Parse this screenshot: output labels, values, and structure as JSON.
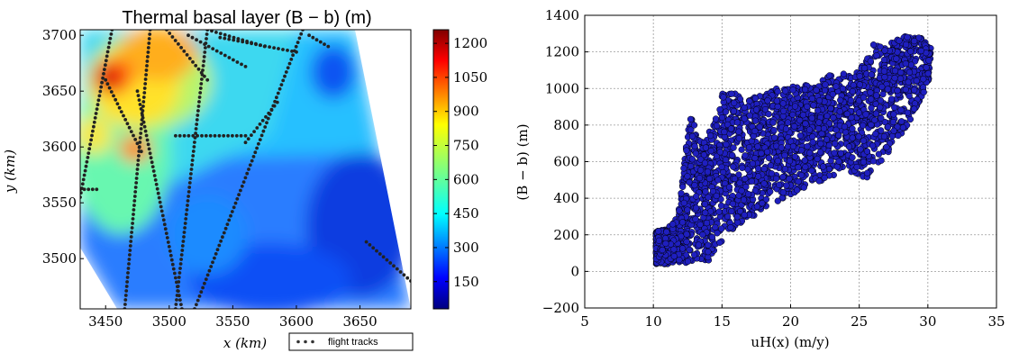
{
  "chart_data": [
    {
      "type": "heatmap",
      "title": "Thermal basal layer (B − b) (m)",
      "xlabel": "x (km)",
      "ylabel": "y (km)",
      "xlim": [
        3430,
        3690
      ],
      "ylim": [
        3455,
        3705
      ],
      "x_ticks": [
        "3450",
        "3500",
        "3550",
        "3600",
        "3650"
      ],
      "y_ticks": [
        "3500",
        "3550",
        "3600",
        "3650",
        "3700"
      ],
      "colorbar": {
        "min": 30,
        "max": 1260,
        "ticks": [
          "150",
          "300",
          "450",
          "600",
          "750",
          "900",
          "1050",
          "1200"
        ],
        "colormap": "jet"
      },
      "legend": {
        "label": "flight tracks",
        "placement": "bottom-right-outside"
      },
      "flight_tracks": [
        [
          [
            3455,
            3705
          ],
          [
            3430,
            3555
          ]
        ],
        [
          [
            3485,
            3705
          ],
          [
            3465,
            3455
          ]
        ],
        [
          [
            3530,
            3705
          ],
          [
            3505,
            3455
          ]
        ],
        [
          [
            3605,
            3705
          ],
          [
            3520,
            3455
          ]
        ],
        [
          [
            3498,
            3705
          ],
          [
            3530,
            3660
          ]
        ],
        [
          [
            3515,
            3700
          ],
          [
            3560,
            3672
          ]
        ],
        [
          [
            3530,
            3705
          ],
          [
            3575,
            3690
          ]
        ],
        [
          [
            3540,
            3698
          ],
          [
            3600,
            3685
          ]
        ],
        [
          [
            3610,
            3700
          ],
          [
            3625,
            3690
          ]
        ],
        [
          [
            3585,
            3640
          ],
          [
            3560,
            3604
          ]
        ],
        [
          [
            3475,
            3650
          ],
          [
            3510,
            3455
          ]
        ],
        [
          [
            3450,
            3660
          ],
          [
            3478,
            3596
          ]
        ],
        [
          [
            3505,
            3610
          ],
          [
            3560,
            3610
          ]
        ],
        [
          [
            3430,
            3562
          ],
          [
            3443,
            3562
          ]
        ],
        [
          [
            3655,
            3515
          ],
          [
            3690,
            3480
          ]
        ]
      ]
    },
    {
      "type": "scatter",
      "title": "",
      "xlabel": "uH(x) (m/y)",
      "ylabel": "(B − b) (m)",
      "xlim": [
        5,
        35
      ],
      "ylim": [
        -200,
        1400
      ],
      "x_ticks": [
        "5",
        "10",
        "15",
        "20",
        "25",
        "30",
        "35"
      ],
      "y_ticks": [
        "−200",
        "0",
        "200",
        "400",
        "600",
        "800",
        "1000",
        "1200",
        "1400"
      ],
      "grid": true,
      "marker_color": "#1f1fbf",
      "edge_color": "#000000",
      "point_cloud": {
        "lower_envelope": [
          [
            10.2,
            40
          ],
          [
            12,
            40
          ],
          [
            13.5,
            40
          ],
          [
            14.5,
            80
          ],
          [
            15.5,
            200
          ],
          [
            17,
            290
          ],
          [
            19,
            380
          ],
          [
            21,
            460
          ],
          [
            22.5,
            500
          ],
          [
            24,
            560
          ],
          [
            25.5,
            500
          ],
          [
            27,
            640
          ],
          [
            28.5,
            800
          ],
          [
            30,
            1000
          ],
          [
            30.3,
            1220
          ]
        ],
        "upper_envelope": [
          [
            10.2,
            220
          ],
          [
            11,
            230
          ],
          [
            11.8,
            300
          ],
          [
            12.2,
            560
          ],
          [
            12.5,
            780
          ],
          [
            12.8,
            860
          ],
          [
            13.2,
            740
          ],
          [
            13.6,
            700
          ],
          [
            14.5,
            820
          ],
          [
            15,
            980
          ],
          [
            16,
            1000
          ],
          [
            16.5,
            920
          ],
          [
            17.5,
            960
          ],
          [
            19,
            1000
          ],
          [
            21,
            1020
          ],
          [
            23,
            1080
          ],
          [
            24,
            1080
          ],
          [
            25,
            1100
          ],
          [
            26,
            1240
          ],
          [
            27,
            1240
          ],
          [
            28.5,
            1290
          ],
          [
            29.5,
            1280
          ],
          [
            30.2,
            1220
          ]
        ]
      }
    }
  ]
}
